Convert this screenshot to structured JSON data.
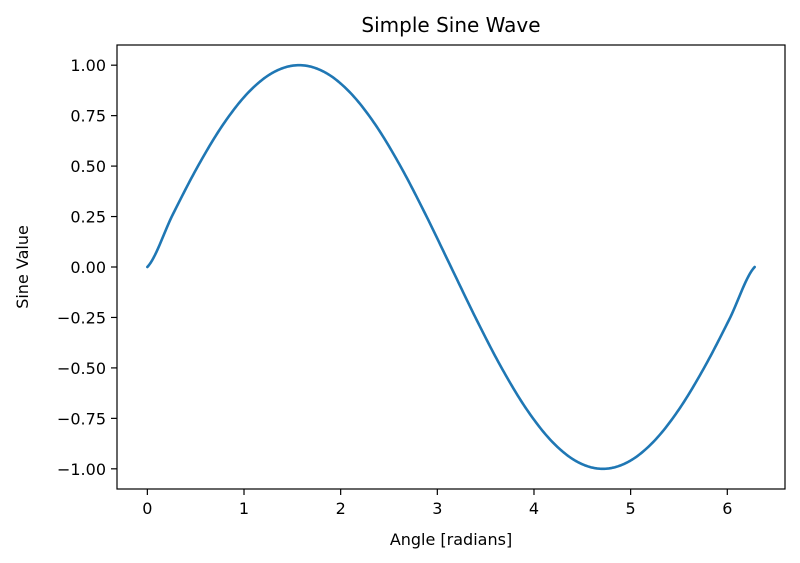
{
  "chart_data": {
    "type": "line",
    "title": "Simple Sine Wave",
    "xlabel": "Angle [radians]",
    "ylabel": "Sine Value",
    "xlim": [
      -0.314,
      6.597
    ],
    "ylim": [
      -1.1,
      1.1
    ],
    "xticks": [
      0,
      1,
      2,
      3,
      4,
      5,
      6
    ],
    "xtick_labels": [
      "0",
      "1",
      "2",
      "3",
      "4",
      "5",
      "6"
    ],
    "yticks": [
      -1.0,
      -0.75,
      -0.5,
      -0.25,
      0.0,
      0.25,
      0.5,
      0.75,
      1.0
    ],
    "ytick_labels": [
      "−1.00",
      "−0.75",
      "−0.50",
      "−0.25",
      "0.00",
      "0.25",
      "0.50",
      "0.75",
      "1.00"
    ],
    "grid": false,
    "series": [
      {
        "color": "#1f77b4",
        "x": [
          0,
          0.2618,
          0.5236,
          0.7854,
          1.0472,
          1.309,
          1.5708,
          1.8326,
          2.0944,
          2.3562,
          2.618,
          2.8798,
          3.1416,
          3.4034,
          3.6652,
          3.927,
          4.1888,
          4.4506,
          4.7124,
          4.9742,
          5.236,
          5.4978,
          5.7596,
          6.0214,
          6.2832
        ],
        "y": [
          0,
          0.2588,
          0.5,
          0.7071,
          0.866,
          0.9659,
          1.0,
          0.9659,
          0.866,
          0.7071,
          0.5,
          0.2588,
          0,
          -0.2588,
          -0.5,
          -0.7071,
          -0.866,
          -0.9659,
          -1.0,
          -0.9659,
          -0.866,
          -0.7071,
          -0.5,
          -0.2588,
          0
        ]
      }
    ]
  }
}
